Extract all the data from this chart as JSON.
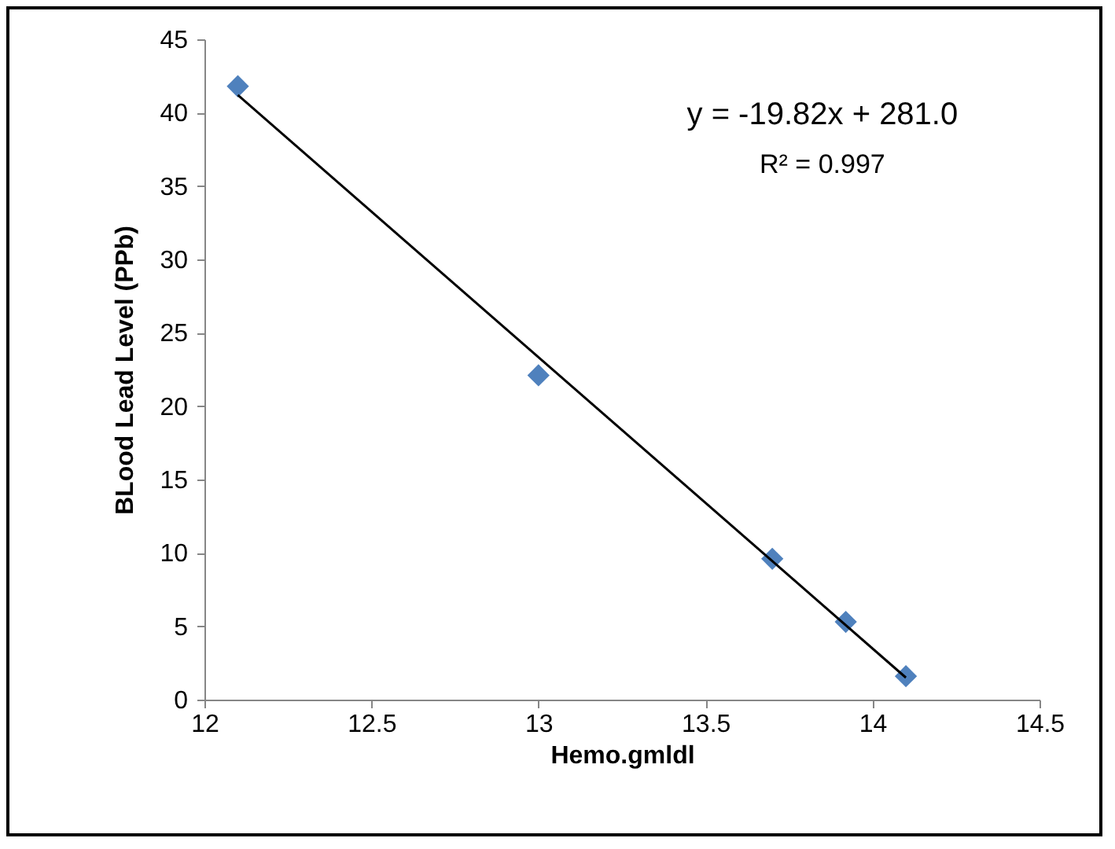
{
  "chart_data": {
    "type": "scatter",
    "xlabel": "Hemo.gmldl",
    "ylabel": "BLood  Lead Level (PPb)",
    "annotations": [
      "y = -19.82x + 281.0",
      "R² = 0.997"
    ],
    "xlim": [
      12,
      14.5
    ],
    "xticks": [
      12,
      12.5,
      13,
      13.5,
      14,
      14.5
    ],
    "ylim": [
      0,
      45
    ],
    "yticks": [
      0,
      5,
      10,
      15,
      20,
      25,
      30,
      35,
      40,
      45
    ],
    "grid": false,
    "series": [
      {
        "color": "#4f81bd",
        "marker": "diamond",
        "x": [
          12.1,
          13.0,
          13.7,
          13.92,
          14.1
        ],
        "values": [
          41.8,
          22.1,
          9.6,
          5.3,
          1.6
        ]
      },
      {
        "type": "line",
        "color": "#000000",
        "marker": "none",
        "line_style": "solid",
        "x": [
          12.1,
          14.1
        ],
        "values": [
          41.2,
          1.5
        ]
      }
    ]
  }
}
